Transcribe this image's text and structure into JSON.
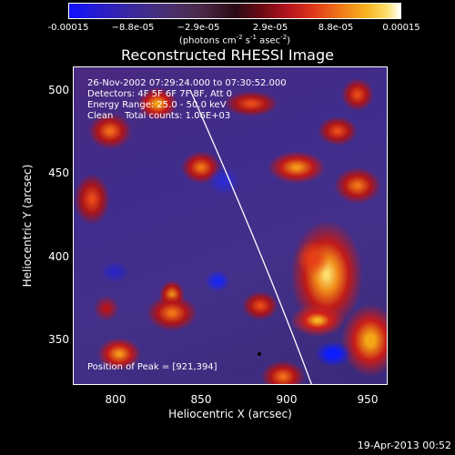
{
  "colorbar": {
    "ticks": [
      "-0.00015",
      "−8.8e-05",
      "−2.9e-05",
      "2.9e-05",
      "8.8e-05",
      "0.00015"
    ],
    "units_prefix": "(photons cm",
    "units_sup1": "-2",
    "units_mid": " s",
    "units_sup2": "-1",
    "units_mid2": " asec",
    "units_sup3": "-2",
    "units_suffix": ")"
  },
  "title": "Reconstructed RHESSI Image",
  "info": {
    "line1": "26-Nov-2002 07:29:24.000 to 07:30:52.000",
    "line2": "Detectors: 4F 5F 6F 7F 8F, Att 0",
    "line3": "Energy Range: 25.0 - 50.0 keV",
    "line4": "Clean    Total counts: 1.06E+03",
    "peak": "Position of Peak = [921,394]"
  },
  "axes": {
    "xlabel": "Heliocentric X (arcsec)",
    "ylabel": "Heliocentric Y (arcsec)",
    "xticks": [
      "800",
      "850",
      "900",
      "950"
    ],
    "yticks": [
      "500",
      "450",
      "400",
      "350"
    ]
  },
  "footer": {
    "date": "19-Apr-2013 00:52"
  }
}
